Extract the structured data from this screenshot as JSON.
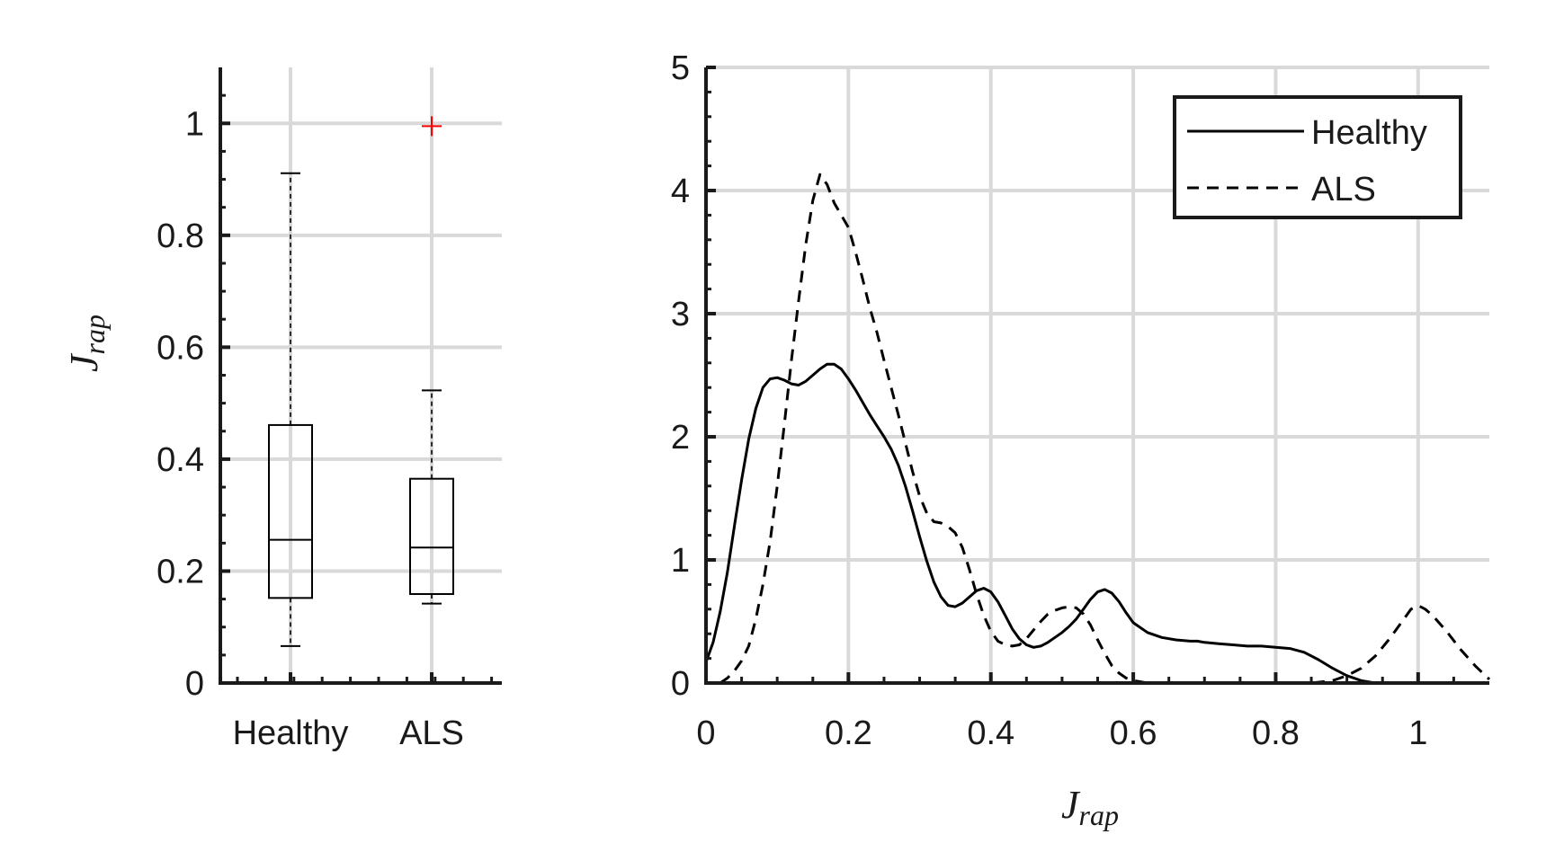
{
  "chart_data": [
    {
      "type": "box",
      "categories": [
        "Healthy",
        "ALS"
      ],
      "ylabel": "J",
      "ylabel_sub": "rap",
      "ylim": [
        0,
        1.1
      ],
      "yticks": [
        "0",
        "0.2",
        "0.4",
        "0.6",
        "0.8",
        "1"
      ],
      "grid": true,
      "boxes": [
        {
          "name": "Healthy",
          "whisker_low": 0.066,
          "q1": 0.152,
          "median": 0.256,
          "q3": 0.461,
          "whisker_high": 0.911,
          "outliers": []
        },
        {
          "name": "ALS",
          "whisker_low": 0.142,
          "q1": 0.159,
          "median": 0.242,
          "q3": 0.365,
          "whisker_high": 0.523,
          "outliers": [
            0.995
          ]
        }
      ],
      "colors": {
        "box": "#000000",
        "outlier": "#ff0000"
      }
    },
    {
      "type": "line",
      "xlabel": "J",
      "xlabel_sub": "rap",
      "xlim": [
        0,
        1.1
      ],
      "ylim": [
        0,
        5
      ],
      "xticks": [
        "0",
        "0.2",
        "0.4",
        "0.6",
        "0.8",
        "1"
      ],
      "yticks": [
        "0",
        "1",
        "2",
        "3",
        "4",
        "5"
      ],
      "grid": true,
      "legend_position": "top-right",
      "series": [
        {
          "name": "Healthy",
          "style": "solid",
          "x": [
            0,
            0.01,
            0.02,
            0.03,
            0.04,
            0.05,
            0.06,
            0.07,
            0.08,
            0.09,
            0.1,
            0.11,
            0.12,
            0.13,
            0.14,
            0.15,
            0.16,
            0.17,
            0.18,
            0.19,
            0.2,
            0.21,
            0.22,
            0.23,
            0.24,
            0.25,
            0.26,
            0.27,
            0.28,
            0.29,
            0.3,
            0.31,
            0.32,
            0.33,
            0.34,
            0.35,
            0.36,
            0.37,
            0.38,
            0.39,
            0.4,
            0.41,
            0.42,
            0.43,
            0.44,
            0.45,
            0.46,
            0.47,
            0.48,
            0.49,
            0.5,
            0.51,
            0.52,
            0.53,
            0.54,
            0.55,
            0.56,
            0.57,
            0.58,
            0.59,
            0.6,
            0.62,
            0.64,
            0.66,
            0.68,
            0.69,
            0.7,
            0.72,
            0.74,
            0.76,
            0.78,
            0.8,
            0.82,
            0.84,
            0.86,
            0.88,
            0.9,
            0.92,
            0.94,
            0.96,
            0.98,
            1,
            1.02,
            1.04,
            1.06,
            1.08,
            1.1
          ],
          "y": [
            0.17,
            0.33,
            0.58,
            0.9,
            1.28,
            1.65,
            1.98,
            2.23,
            2.4,
            2.47,
            2.48,
            2.46,
            2.43,
            2.42,
            2.45,
            2.5,
            2.55,
            2.59,
            2.59,
            2.55,
            2.47,
            2.38,
            2.28,
            2.18,
            2.09,
            2.0,
            1.9,
            1.77,
            1.6,
            1.4,
            1.19,
            0.99,
            0.82,
            0.7,
            0.63,
            0.62,
            0.65,
            0.7,
            0.75,
            0.77,
            0.74,
            0.66,
            0.55,
            0.44,
            0.36,
            0.31,
            0.29,
            0.3,
            0.33,
            0.37,
            0.41,
            0.46,
            0.52,
            0.6,
            0.68,
            0.74,
            0.76,
            0.73,
            0.66,
            0.57,
            0.49,
            0.41,
            0.37,
            0.35,
            0.34,
            0.34,
            0.33,
            0.32,
            0.31,
            0.3,
            0.3,
            0.29,
            0.28,
            0.25,
            0.19,
            0.12,
            0.06,
            0.02,
            0.0,
            0.0,
            0.0,
            0.0,
            0.0,
            0.0,
            0.0,
            0.0,
            0.0
          ]
        },
        {
          "name": "ALS",
          "style": "dashed",
          "x": [
            0.02,
            0.03,
            0.04,
            0.05,
            0.06,
            0.07,
            0.08,
            0.09,
            0.1,
            0.11,
            0.12,
            0.13,
            0.14,
            0.15,
            0.16,
            0.17,
            0.18,
            0.19,
            0.2,
            0.21,
            0.22,
            0.23,
            0.24,
            0.25,
            0.26,
            0.27,
            0.28,
            0.29,
            0.3,
            0.31,
            0.32,
            0.33,
            0.34,
            0.35,
            0.36,
            0.37,
            0.38,
            0.39,
            0.4,
            0.41,
            0.42,
            0.43,
            0.44,
            0.45,
            0.46,
            0.47,
            0.48,
            0.49,
            0.5,
            0.51,
            0.52,
            0.53,
            0.54,
            0.55,
            0.56,
            0.57,
            0.58,
            0.59,
            0.6,
            0.61,
            0.62,
            0.63,
            0.65,
            0.7,
            0.75,
            0.8,
            0.85,
            0.88,
            0.9,
            0.92,
            0.94,
            0.96,
            0.98,
            0.99,
            1.0,
            1.01,
            1.02,
            1.04,
            1.06,
            1.08,
            1.1
          ],
          "y": [
            0.0,
            0.04,
            0.1,
            0.18,
            0.3,
            0.52,
            0.8,
            1.15,
            1.6,
            2.1,
            2.62,
            3.1,
            3.56,
            3.92,
            4.13,
            4.05,
            3.9,
            3.8,
            3.7,
            3.5,
            3.28,
            3.05,
            2.85,
            2.62,
            2.4,
            2.18,
            1.95,
            1.72,
            1.52,
            1.38,
            1.31,
            1.3,
            1.27,
            1.22,
            1.1,
            0.92,
            0.72,
            0.55,
            0.42,
            0.34,
            0.31,
            0.3,
            0.31,
            0.36,
            0.43,
            0.5,
            0.56,
            0.59,
            0.61,
            0.62,
            0.61,
            0.56,
            0.47,
            0.35,
            0.24,
            0.14,
            0.08,
            0.04,
            0.02,
            0.01,
            0.0,
            0.0,
            0.0,
            0.0,
            0.0,
            0.0,
            0.0,
            0.02,
            0.06,
            0.12,
            0.22,
            0.36,
            0.52,
            0.6,
            0.63,
            0.6,
            0.55,
            0.42,
            0.27,
            0.14,
            0.03
          ]
        }
      ]
    }
  ]
}
